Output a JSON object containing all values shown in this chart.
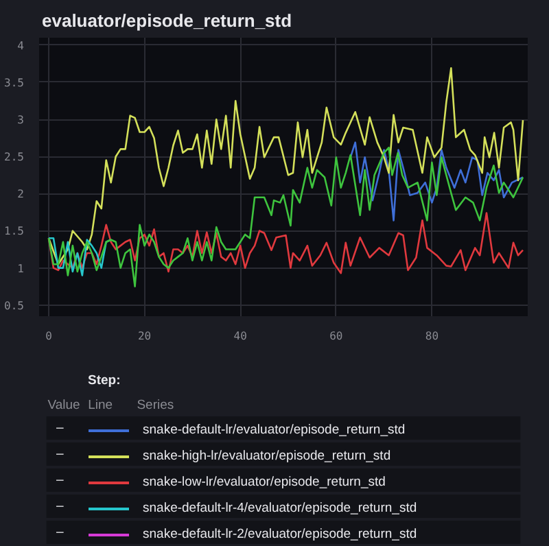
{
  "chart_data": {
    "type": "line",
    "title": "evaluator/episode_return_std",
    "legend_title": "Step:",
    "annotations": [
      "Line",
      "Value",
      "Series",
      "–",
      "–",
      "–",
      "–",
      "–"
    ],
    "xlim": [
      -2,
      100
    ],
    "ylim": [
      0.35,
      4.1
    ],
    "xticks": [
      0,
      20,
      40,
      60,
      80
    ],
    "yticks": [
      0.5,
      1,
      1.5,
      2,
      2.5,
      3,
      3.5,
      4
    ],
    "grid": true,
    "legend": "bottom",
    "series": [
      {
        "name": "snake-default-lr/evaluator/episode_return_std",
        "color": "#3f6fd8",
        "x": [
          63,
          64,
          65,
          66,
          67.6,
          69,
          70,
          71,
          72,
          73,
          74,
          75.4,
          77,
          78.6,
          80,
          81,
          82,
          83,
          84.7,
          86,
          87,
          88.4,
          89.5,
          90.5,
          91.6,
          92.9,
          94,
          95,
          96.7,
          99
        ],
        "values": [
          2.49,
          2.69,
          2.15,
          2.49,
          1.91,
          2.28,
          2.59,
          2.32,
          1.64,
          2.59,
          2.35,
          1.98,
          2.01,
          2.15,
          1.88,
          2.08,
          2.59,
          2.35,
          2.08,
          2.32,
          2.15,
          2.49,
          2.45,
          1.98,
          2.28,
          2.18,
          2.32,
          1.95,
          2.15,
          2.22
        ]
      },
      {
        "name": "snake-high-lr/evaluator/episode_return_std",
        "color": "#d4e05a",
        "x": [
          0,
          2,
          4,
          5,
          7,
          8,
          9,
          10,
          11,
          12,
          13,
          14,
          15,
          16,
          17,
          18,
          19,
          20,
          21,
          22,
          23,
          24,
          25,
          26,
          27,
          28,
          29,
          30,
          31,
          32,
          33,
          34,
          35,
          36,
          37,
          38,
          39,
          40,
          41,
          42,
          43,
          44,
          45,
          47,
          48,
          50,
          51,
          52,
          53,
          54,
          55,
          57,
          58,
          59.5,
          61,
          62,
          64,
          66,
          67,
          68.6,
          70,
          71,
          72,
          73,
          74,
          76,
          78,
          79,
          80.5,
          82,
          83,
          84,
          85,
          86.7,
          88,
          89,
          90.5,
          91,
          92,
          93,
          94,
          95,
          96.5,
          97,
          98,
          99
        ],
        "values": [
          1.4,
          1.05,
          1.25,
          1.5,
          1.35,
          1.25,
          1.45,
          1.9,
          1.8,
          2.45,
          2.15,
          2.5,
          2.6,
          2.6,
          3.05,
          3.02,
          2.83,
          2.83,
          2.9,
          2.75,
          2.35,
          2.1,
          2.35,
          2.65,
          2.85,
          2.55,
          2.6,
          2.6,
          2.8,
          2.35,
          2.85,
          2.4,
          3.0,
          2.6,
          3.05,
          2.35,
          3.25,
          2.8,
          2.5,
          2.2,
          2.35,
          2.9,
          2.49,
          2.76,
          2.76,
          2.25,
          2.28,
          2.96,
          2.49,
          2.86,
          2.28,
          2.69,
          3.16,
          2.76,
          2.66,
          2.82,
          3.1,
          2.66,
          3.03,
          2.69,
          2.49,
          2.28,
          3.06,
          2.69,
          2.89,
          2.86,
          2.28,
          2.76,
          2.49,
          2.62,
          3.23,
          3.69,
          2.76,
          2.86,
          2.59,
          2.52,
          2.28,
          2.76,
          2.49,
          2.82,
          2.35,
          2.89,
          2.96,
          2.86,
          2.18,
          2.99
        ]
      },
      {
        "name": "snake-low-lr/evaluator/episode_return_std",
        "color": "#e0393e",
        "x": [
          0,
          1,
          2,
          3,
          4,
          5,
          6,
          7,
          8,
          9,
          10,
          11,
          12,
          13,
          14,
          15,
          16,
          17,
          18,
          19,
          20,
          21,
          22,
          23,
          24,
          25,
          26,
          27,
          28,
          29,
          30,
          31,
          32,
          33,
          34,
          35,
          36,
          37,
          38,
          39,
          40,
          41,
          42,
          43,
          44,
          45,
          46.5,
          47.5,
          49.5,
          50.5,
          51,
          52.4,
          54,
          55,
          56.7,
          58,
          59.5,
          61,
          62,
          63,
          65,
          67,
          69,
          71,
          73,
          74,
          75,
          76.7,
          78,
          79,
          81,
          83,
          84,
          86,
          87,
          89,
          90,
          91.4,
          92.9,
          94,
          96,
          97,
          98,
          99
        ],
        "values": [
          1.4,
          1.0,
          0.97,
          1.1,
          1.05,
          1.0,
          1.2,
          1.0,
          1.2,
          1.2,
          1.05,
          1.3,
          1.58,
          1.35,
          1.25,
          1.3,
          1.35,
          1.38,
          1.1,
          1.4,
          1.45,
          1.3,
          1.52,
          1.15,
          1.2,
          0.95,
          1.25,
          1.25,
          1.2,
          1.3,
          1.15,
          1.5,
          1.2,
          1.48,
          1.2,
          1.47,
          1.15,
          1.1,
          1.2,
          1.05,
          1.3,
          1.0,
          1.2,
          1.3,
          1.5,
          1.47,
          1.24,
          1.41,
          1.44,
          1.0,
          1.2,
          1.1,
          1.3,
          1.03,
          1.17,
          1.34,
          1.07,
          0.93,
          1.34,
          1.03,
          1.41,
          1.14,
          1.27,
          1.17,
          1.47,
          1.44,
          0.97,
          1.14,
          1.64,
          1.27,
          1.17,
          1.03,
          1.02,
          1.24,
          0.97,
          1.27,
          1.17,
          1.74,
          1.07,
          1.2,
          1.0,
          1.34,
          1.17,
          1.24
        ]
      },
      {
        "name": "snake-default-lr-4/evaluator/episode_return_std",
        "color": "#26c6cc",
        "x": [
          0,
          1,
          2,
          3,
          4,
          5,
          6,
          7,
          8,
          9,
          10,
          11,
          12,
          13
        ],
        "values": [
          1.4,
          1.4,
          1.0,
          1.0,
          1.35,
          0.95,
          1.2,
          0.9,
          1.38,
          1.3,
          1.2,
          1.0,
          1.35,
          1.38
        ]
      },
      {
        "name": "snake-default-lr-2/evaluator/episode_return_std",
        "color": "#d63ad6"
      },
      {
        "color": "#3ec43e",
        "x": [
          0,
          1,
          2,
          3,
          4,
          5,
          6,
          7,
          8,
          9,
          10,
          11,
          12,
          13,
          14,
          15,
          16,
          17,
          18,
          19,
          20,
          21,
          22,
          23,
          24,
          25,
          26,
          27,
          28,
          29,
          30,
          31,
          32,
          33,
          34,
          35,
          36,
          37,
          38,
          39,
          40,
          41,
          42,
          43,
          44,
          45,
          46.5,
          47,
          48.3,
          49,
          50.5,
          51,
          52.4,
          54,
          55,
          56,
          57.6,
          59,
          60,
          61,
          62,
          63,
          65,
          66,
          67,
          68,
          70,
          71,
          71.7,
          72.9,
          73.8,
          75,
          77,
          79,
          80,
          81,
          82,
          84,
          85,
          87,
          88.6,
          90,
          91.4,
          92.9,
          94,
          95,
          97,
          99
        ],
        "values": [
          1.4,
          1.05,
          1.05,
          1.35,
          0.9,
          1.3,
          0.95,
          1.2,
          1.35,
          1.2,
          0.97,
          1.15,
          1.35,
          1.38,
          1.35,
          1.0,
          1.2,
          1.25,
          0.75,
          1.58,
          1.3,
          1.45,
          1.35,
          1.15,
          1.05,
          1.0,
          1.1,
          1.15,
          1.2,
          1.4,
          1.1,
          1.35,
          1.1,
          1.35,
          1.1,
          1.55,
          1.35,
          1.25,
          1.25,
          1.25,
          1.35,
          1.45,
          1.4,
          1.95,
          1.95,
          1.95,
          1.71,
          1.91,
          1.88,
          1.98,
          1.57,
          2.05,
          1.88,
          2.35,
          2.08,
          2.32,
          2.22,
          1.84,
          2.49,
          2.08,
          2.28,
          2.52,
          1.71,
          2.32,
          1.78,
          2.25,
          2.55,
          2.62,
          2.25,
          2.55,
          2.25,
          2.08,
          2.15,
          1.64,
          2.42,
          1.98,
          2.49,
          2.01,
          1.78,
          1.95,
          1.88,
          1.64,
          2.08,
          2.38,
          2.01,
          2.15,
          1.95,
          2.22
        ]
      }
    ]
  }
}
